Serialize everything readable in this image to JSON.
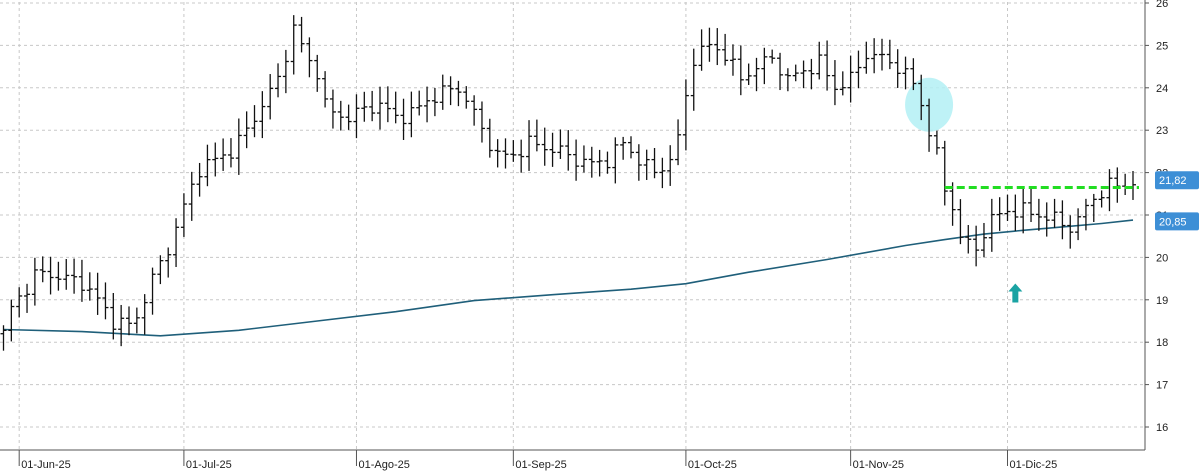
{
  "chart_data": {
    "type": "ohlc_bar",
    "title": "",
    "xlabel": "",
    "ylabel": "",
    "ylim": [
      15.6,
      26.1
    ],
    "yticks": [
      16,
      17,
      18,
      19,
      20,
      21,
      22,
      23,
      24,
      25,
      26
    ],
    "x_index_range": [
      0,
      155
    ],
    "xticks": [
      {
        "label": "01-Jun-25",
        "index": 2
      },
      {
        "label": "01-Jul-25",
        "index": 23
      },
      {
        "label": "01-Ago-25",
        "index": 45
      },
      {
        "label": "01-Sep-25",
        "index": 65
      },
      {
        "label": "01-Oct-25",
        "index": 87
      },
      {
        "label": "01-Nov-25",
        "index": 108
      },
      {
        "label": "01-Dic-25",
        "index": 128
      }
    ],
    "grid": true,
    "colors": {
      "bars": "#111111",
      "moving_average": "#1f5f7a",
      "resistance": "#22dd22",
      "highlight_circle": "#b3f0f5",
      "arrow": "#1aa3a3",
      "price_tag": "#3d8fd6",
      "grid": "#c8c8c8"
    },
    "price_tags": [
      {
        "label": "21,82",
        "value": 21.82
      },
      {
        "label": "20,85",
        "value": 20.85
      }
    ],
    "resistance_line": {
      "value": 21.65,
      "from_index": 120,
      "to_index": 144
    },
    "highlight": {
      "index": 118,
      "value": 23.6
    },
    "up_arrow": {
      "index": 129,
      "value": 19.1
    },
    "moving_average": [
      {
        "i": 0,
        "v": 18.3
      },
      {
        "i": 10,
        "v": 18.25
      },
      {
        "i": 20,
        "v": 18.15
      },
      {
        "i": 30,
        "v": 18.28
      },
      {
        "i": 40,
        "v": 18.5
      },
      {
        "i": 50,
        "v": 18.72
      },
      {
        "i": 60,
        "v": 18.98
      },
      {
        "i": 70,
        "v": 19.12
      },
      {
        "i": 80,
        "v": 19.25
      },
      {
        "i": 87,
        "v": 19.38
      },
      {
        "i": 95,
        "v": 19.65
      },
      {
        "i": 105,
        "v": 19.95
      },
      {
        "i": 115,
        "v": 20.28
      },
      {
        "i": 120,
        "v": 20.42
      },
      {
        "i": 125,
        "v": 20.55
      },
      {
        "i": 130,
        "v": 20.64
      },
      {
        "i": 135,
        "v": 20.72
      },
      {
        "i": 140,
        "v": 20.8
      },
      {
        "i": 144,
        "v": 20.88
      }
    ],
    "anchors": [
      [
        0,
        18.2
      ],
      [
        1,
        18.8
      ],
      [
        3,
        19.3
      ],
      [
        4,
        19.6
      ],
      [
        6,
        19.6
      ],
      [
        8,
        19.5
      ],
      [
        10,
        19.4
      ],
      [
        12,
        19.0
      ],
      [
        14,
        18.5
      ],
      [
        16,
        18.4
      ],
      [
        17,
        18.6
      ],
      [
        19,
        19.5
      ],
      [
        21,
        20.2
      ],
      [
        23,
        21.2
      ],
      [
        25,
        22.1
      ],
      [
        27,
        22.3
      ],
      [
        29,
        22.5
      ],
      [
        31,
        23.0
      ],
      [
        33,
        23.6
      ],
      [
        35,
        24.2
      ],
      [
        37,
        25.4
      ],
      [
        38,
        25.0
      ],
      [
        39,
        24.6
      ],
      [
        40,
        24.4
      ],
      [
        41,
        23.6
      ],
      [
        42,
        23.4
      ],
      [
        44,
        23.3
      ],
      [
        46,
        23.5
      ],
      [
        48,
        23.6
      ],
      [
        50,
        23.3
      ],
      [
        52,
        23.4
      ],
      [
        54,
        23.7
      ],
      [
        56,
        23.9
      ],
      [
        58,
        24.0
      ],
      [
        60,
        23.4
      ],
      [
        61,
        23.0
      ],
      [
        63,
        22.4
      ],
      [
        65,
        22.4
      ],
      [
        67,
        22.7
      ],
      [
        69,
        22.6
      ],
      [
        71,
        22.5
      ],
      [
        73,
        22.3
      ],
      [
        75,
        22.2
      ],
      [
        77,
        22.3
      ],
      [
        79,
        22.7
      ],
      [
        81,
        22.3
      ],
      [
        83,
        22.0
      ],
      [
        85,
        22.3
      ],
      [
        86,
        22.8
      ],
      [
        87,
        23.8
      ],
      [
        88,
        24.7
      ],
      [
        90,
        25.0
      ],
      [
        92,
        24.8
      ],
      [
        94,
        24.2
      ],
      [
        96,
        24.5
      ],
      [
        98,
        24.7
      ],
      [
        100,
        24.2
      ],
      [
        102,
        24.4
      ],
      [
        104,
        24.6
      ],
      [
        106,
        24.0
      ],
      [
        108,
        24.2
      ],
      [
        110,
        24.8
      ],
      [
        112,
        24.7
      ],
      [
        114,
        24.5
      ],
      [
        116,
        24.1
      ],
      [
        117,
        23.6
      ],
      [
        118,
        23.0
      ],
      [
        119,
        22.4
      ],
      [
        120,
        21.6
      ],
      [
        121,
        21.2
      ],
      [
        122,
        20.5
      ],
      [
        123,
        20.3
      ],
      [
        124,
        20.2
      ],
      [
        125,
        20.6
      ],
      [
        126,
        20.9
      ],
      [
        128,
        21.1
      ],
      [
        130,
        21.1
      ],
      [
        132,
        21.0
      ],
      [
        134,
        20.9
      ],
      [
        136,
        20.7
      ],
      [
        137,
        20.9
      ],
      [
        139,
        21.4
      ],
      [
        141,
        21.7
      ],
      [
        143,
        21.7
      ],
      [
        144,
        21.82
      ]
    ]
  }
}
